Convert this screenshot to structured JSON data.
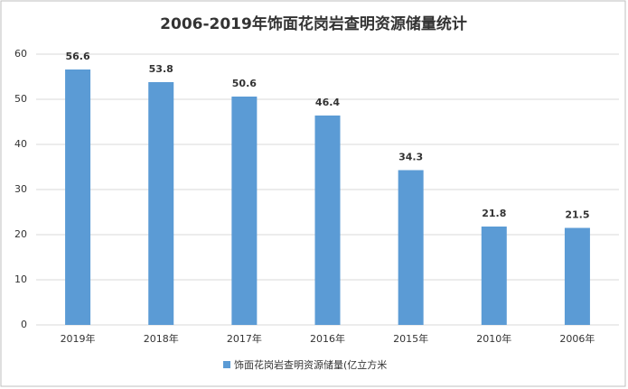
{
  "chart_data": {
    "type": "bar",
    "title": "2006-2019年饰面花岗岩查明资源储量统计",
    "categories": [
      "2019年",
      "2018年",
      "2017年",
      "2016年",
      "2015年",
      "2010年",
      "2006年"
    ],
    "series": [
      {
        "name": "饰面花岗岩查明资源储量(亿立方米",
        "color": "#5b9bd5",
        "values": [
          56.6,
          53.8,
          50.6,
          46.4,
          34.3,
          21.8,
          21.5
        ]
      }
    ],
    "ylim": [
      0,
      60
    ],
    "yticks": [
      0,
      10,
      20,
      30,
      40,
      50,
      60
    ],
    "grid": true,
    "legend": "bottom"
  }
}
